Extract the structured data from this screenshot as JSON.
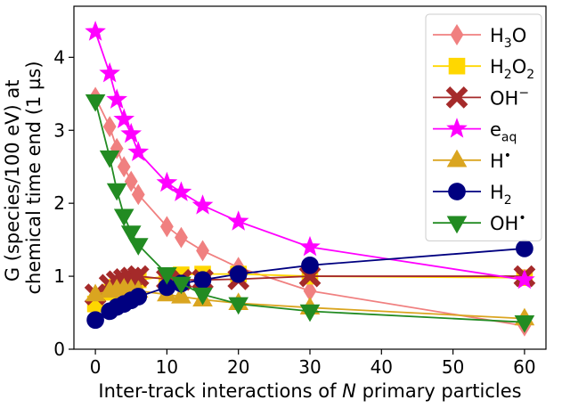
{
  "chart_data": {
    "type": "line",
    "xlabel_prefix": "Inter-track interactions of ",
    "xlabel_var": "N",
    "xlabel_suffix": " primary particles",
    "ylabel_line1": "G (species/100 eV) at",
    "ylabel_line2": "chemical time end (1 µs)",
    "xlim": [
      -3,
      63
    ],
    "ylim": [
      0,
      4.7
    ],
    "xticks": [
      0,
      10,
      20,
      30,
      40,
      50,
      60
    ],
    "yticks": [
      0,
      1,
      2,
      3,
      4
    ],
    "legend_position": "top-right",
    "series": [
      {
        "name_base": "H",
        "name_sub": "3",
        "name_tail": "O",
        "name_sup": "",
        "marker": "diamond",
        "color": "#f08080",
        "x": [
          0,
          2,
          3,
          4,
          5,
          6,
          10,
          12,
          15,
          20,
          30,
          60
        ],
        "y": [
          3.45,
          3.05,
          2.75,
          2.5,
          2.3,
          2.12,
          1.68,
          1.53,
          1.35,
          1.12,
          0.8,
          0.32
        ]
      },
      {
        "name_base": "H",
        "name_sub": "2",
        "name_tail": "O",
        "name_sub2": "2",
        "name_sup": "",
        "marker": "square",
        "color": "#ffd700",
        "x": [
          0,
          2,
          3,
          4,
          5,
          6,
          10,
          12,
          15,
          20,
          30,
          60
        ],
        "y": [
          0.62,
          0.78,
          0.85,
          0.9,
          0.93,
          0.95,
          1.0,
          1.02,
          1.03,
          1.03,
          1.0,
          0.98
        ]
      },
      {
        "name_base": "OH",
        "name_sub": "",
        "name_tail": "",
        "name_sup": "−",
        "marker": "x",
        "color": "#a52a2a",
        "x": [
          0,
          2,
          3,
          4,
          5,
          6,
          10,
          12,
          15,
          20,
          30,
          60
        ],
        "y": [
          0.75,
          0.88,
          0.93,
          0.96,
          0.98,
          1.0,
          0.96,
          0.95,
          0.95,
          0.96,
          1.0,
          1.0
        ]
      },
      {
        "name_base": "e",
        "name_sub": "aq",
        "name_tail": "",
        "name_sup": "",
        "marker": "star",
        "color": "#ff00ff",
        "x": [
          0,
          2,
          3,
          4,
          5,
          6,
          10,
          12,
          15,
          20,
          30,
          60
        ],
        "y": [
          4.35,
          3.78,
          3.42,
          3.15,
          2.95,
          2.7,
          2.28,
          2.15,
          1.97,
          1.75,
          1.4,
          0.95
        ]
      },
      {
        "name_base": "H",
        "name_sub": "",
        "name_tail": "",
        "name_sup": "•",
        "marker": "triangle-up",
        "color": "#daa520",
        "x": [
          0,
          2,
          3,
          4,
          5,
          6,
          10,
          12,
          15,
          20,
          30,
          60
        ],
        "y": [
          0.75,
          0.8,
          0.82,
          0.83,
          0.82,
          0.8,
          0.75,
          0.72,
          0.68,
          0.63,
          0.57,
          0.42
        ]
      },
      {
        "name_base": "H",
        "name_sub": "2",
        "name_tail": "",
        "name_sup": "",
        "marker": "circle",
        "color": "#000080",
        "x": [
          0,
          2,
          3,
          4,
          5,
          6,
          10,
          12,
          15,
          20,
          30,
          60
        ],
        "y": [
          0.4,
          0.52,
          0.58,
          0.62,
          0.67,
          0.72,
          0.85,
          0.9,
          0.95,
          1.03,
          1.15,
          1.38
        ]
      },
      {
        "name_base": "OH",
        "name_sub": "",
        "name_tail": "",
        "name_sup": "•",
        "marker": "triangle-down",
        "color": "#228b22",
        "x": [
          0,
          2,
          3,
          4,
          5,
          6,
          10,
          12,
          15,
          20,
          30,
          60
        ],
        "y": [
          3.4,
          2.63,
          2.18,
          1.83,
          1.6,
          1.43,
          1.03,
          0.9,
          0.75,
          0.62,
          0.52,
          0.37
        ]
      }
    ]
  }
}
